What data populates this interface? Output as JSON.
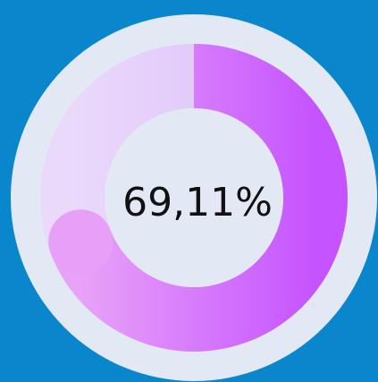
{
  "progress": {
    "value": 69.11,
    "label": "69,11%"
  }
}
